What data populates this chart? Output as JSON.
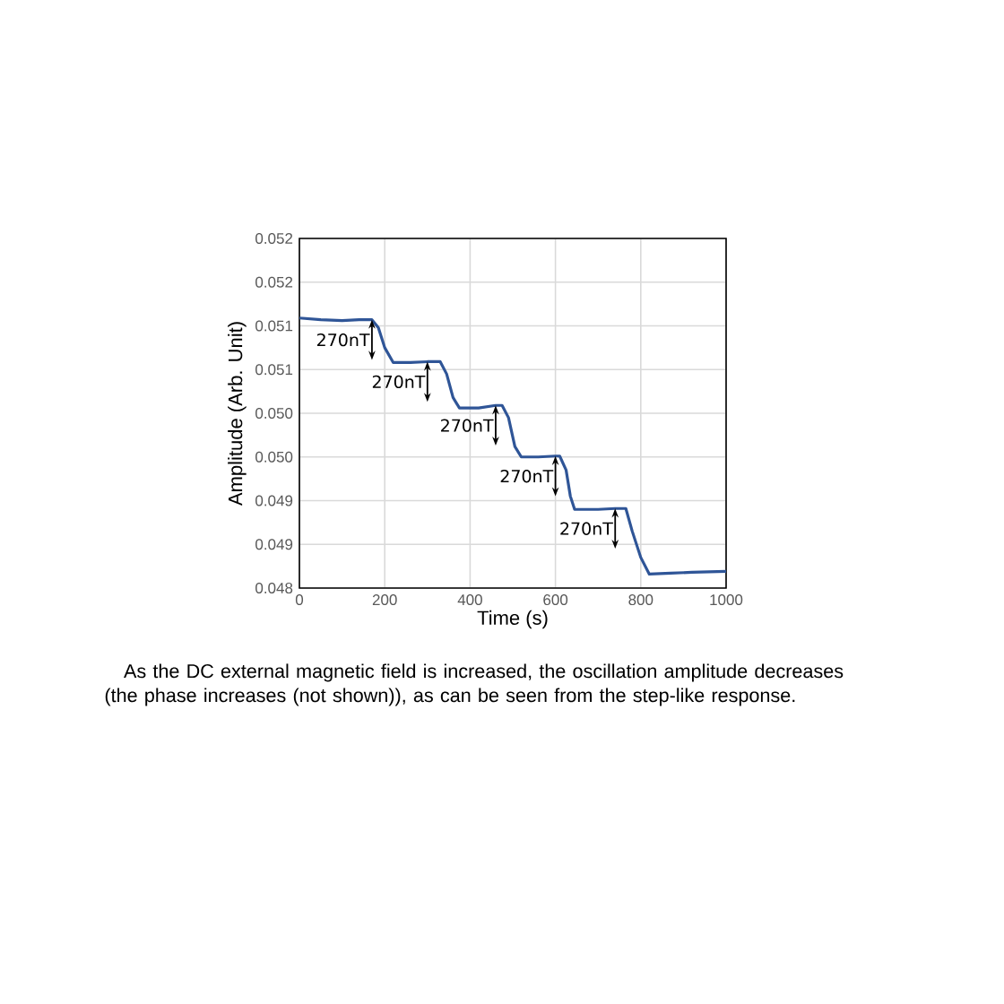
{
  "chart_data": {
    "type": "line",
    "xlabel": "Time (s)",
    "ylabel": "Amplitude (Arb. Unit)",
    "x": [
      0,
      50,
      100,
      140,
      170,
      185,
      200,
      220,
      260,
      300,
      330,
      345,
      360,
      375,
      420,
      460,
      475,
      490,
      505,
      520,
      560,
      600,
      610,
      625,
      635,
      645,
      700,
      740,
      765,
      780,
      800,
      820,
      870,
      920,
      1000
    ],
    "series": [
      {
        "color": "#2f5597",
        "values": [
          0.05109,
          0.05107,
          0.05106,
          0.05107,
          0.05107,
          0.05098,
          0.05075,
          0.05058,
          0.05058,
          0.05059,
          0.05059,
          0.05045,
          0.05018,
          0.05006,
          0.05006,
          0.05009,
          0.05009,
          0.04995,
          0.04962,
          0.0495,
          0.0495,
          0.04951,
          0.04951,
          0.04935,
          0.04905,
          0.0489,
          0.0489,
          0.04891,
          0.04891,
          0.04865,
          0.04835,
          0.04816,
          0.04817,
          0.04818,
          0.04819
        ]
      }
    ],
    "xlim": [
      0,
      1000
    ],
    "xticks": [
      0,
      200,
      400,
      600,
      800,
      1000
    ],
    "ylim": [
      0.048,
      0.052
    ],
    "yticks": [
      {
        "value": 0.048,
        "label": "0.048"
      },
      {
        "value": 0.0485,
        "label": "0.049"
      },
      {
        "value": 0.049,
        "label": "0.049"
      },
      {
        "value": 0.0495,
        "label": "0.050"
      },
      {
        "value": 0.05,
        "label": "0.050"
      },
      {
        "value": 0.0505,
        "label": "0.051"
      },
      {
        "value": 0.051,
        "label": "0.051"
      },
      {
        "value": 0.0515,
        "label": "0.052"
      },
      {
        "value": 0.052,
        "label": "0.052"
      }
    ],
    "grid": true,
    "line_style": "solid",
    "marker": "none",
    "annotations": [
      {
        "text": "270nT",
        "x": 170,
        "y": 0.05107
      },
      {
        "text": "270nT",
        "x": 300,
        "y": 0.05059
      },
      {
        "text": "270nT",
        "x": 460,
        "y": 0.05009
      },
      {
        "text": "270nT",
        "x": 600,
        "y": 0.04951
      },
      {
        "text": "270nT",
        "x": 740,
        "y": 0.04891
      },
      "As the DC external magnetic field is increased, the oscillation amplitude decreases (the phase increases (not shown)), as can be seen from the step-like response."
    ]
  }
}
